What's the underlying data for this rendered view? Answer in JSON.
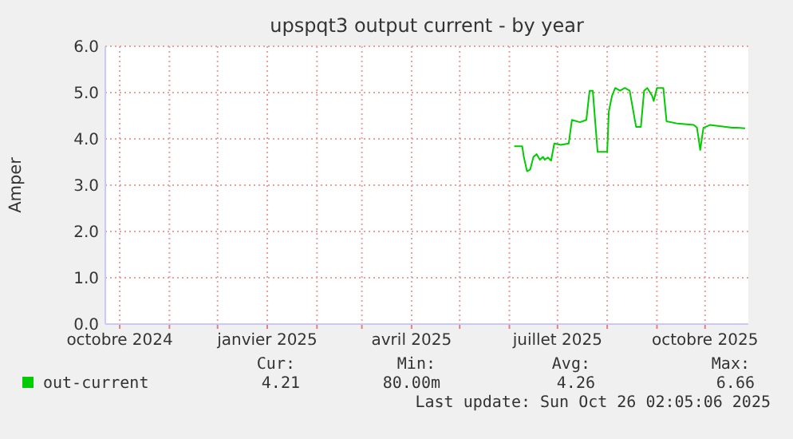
{
  "chart_data": {
    "type": "line",
    "title": "upspqt3 output current - by year",
    "ylabel": "Amper",
    "xlim": [
      "2024-09-22",
      "2025-10-28"
    ],
    "xticks": [
      {
        "value": "2024-10-01",
        "label": "octobre 2024"
      },
      {
        "value": "2024-11-01",
        "label": null
      },
      {
        "value": "2024-12-01",
        "label": null
      },
      {
        "value": "2025-01-01",
        "label": "janvier 2025"
      },
      {
        "value": "2025-02-01",
        "label": null
      },
      {
        "value": "2025-03-01",
        "label": null
      },
      {
        "value": "2025-04-01",
        "label": "avril 2025"
      },
      {
        "value": "2025-05-01",
        "label": null
      },
      {
        "value": "2025-06-01",
        "label": null
      },
      {
        "value": "2025-07-01",
        "label": "juillet 2025"
      },
      {
        "value": "2025-08-01",
        "label": null
      },
      {
        "value": "2025-09-01",
        "label": null
      },
      {
        "value": "2025-10-01",
        "label": "octobre 2025"
      }
    ],
    "ylim": [
      0,
      6
    ],
    "yticks": [
      {
        "value": 0,
        "label": "0.0"
      },
      {
        "value": 1,
        "label": "1.0"
      },
      {
        "value": 2,
        "label": "2.0"
      },
      {
        "value": 3,
        "label": "3.0"
      },
      {
        "value": 4,
        "label": "4.0"
      },
      {
        "value": 5,
        "label": "5.0"
      },
      {
        "value": 6,
        "label": "6.0"
      }
    ],
    "grid": true,
    "legend": "bottom",
    "line_style": "solid",
    "series": [
      {
        "name": "out-current",
        "color": "#00cc00",
        "x": [
          "2025-06-04",
          "2025-06-09",
          "2025-06-10",
          "2025-06-12",
          "2025-06-14",
          "2025-06-16",
          "2025-06-18",
          "2025-06-20",
          "2025-06-22",
          "2025-06-23",
          "2025-06-25",
          "2025-06-27",
          "2025-06-29",
          "2025-07-03",
          "2025-07-08",
          "2025-07-10",
          "2025-07-15",
          "2025-07-19",
          "2025-07-21",
          "2025-07-23",
          "2025-07-26",
          "2025-08-01",
          "2025-08-02",
          "2025-08-04",
          "2025-08-06",
          "2025-08-09",
          "2025-08-12",
          "2025-08-15",
          "2025-08-19",
          "2025-08-22",
          "2025-08-24",
          "2025-08-26",
          "2025-08-29",
          "2025-08-30",
          "2025-09-01",
          "2025-09-05",
          "2025-09-07",
          "2025-09-14",
          "2025-09-24",
          "2025-09-26",
          "2025-09-28",
          "2025-09-30",
          "2025-10-04",
          "2025-10-14",
          "2025-10-18",
          "2025-10-21",
          "2025-10-26"
        ],
        "values": [
          3.84,
          3.84,
          3.61,
          3.3,
          3.34,
          3.61,
          3.67,
          3.55,
          3.61,
          3.55,
          3.6,
          3.53,
          3.9,
          3.87,
          3.9,
          4.41,
          4.36,
          4.41,
          5.04,
          5.04,
          3.72,
          3.72,
          4.59,
          4.93,
          5.1,
          5.04,
          5.1,
          5.04,
          4.26,
          4.26,
          5.04,
          5.1,
          4.93,
          4.82,
          5.1,
          5.1,
          4.38,
          4.33,
          4.3,
          4.24,
          3.76,
          4.24,
          4.3,
          4.26,
          4.24,
          4.24,
          4.23
        ]
      }
    ],
    "annotations": [
      "Cur:",
      "Min:",
      "Avg:",
      "Max:",
      "4.21",
      "80.00m",
      "4.26",
      "6.66",
      "Last update: Sun Oct 26 02:05:06 2025"
    ]
  }
}
